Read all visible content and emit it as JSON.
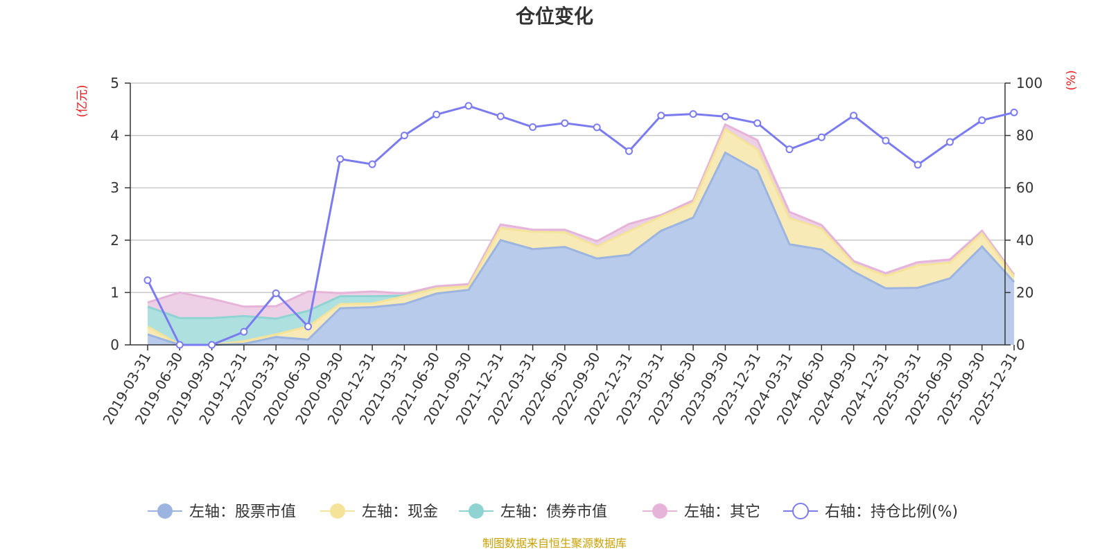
{
  "chart_data": {
    "type": "area",
    "title": "仓位变化",
    "left_axis_label": "(亿元)",
    "right_axis_label": "(%)",
    "left_ylim": [
      0,
      5
    ],
    "left_ticks": [
      "0",
      "1",
      "2",
      "3",
      "4",
      "5"
    ],
    "right_ylim": [
      0,
      100
    ],
    "right_ticks": [
      "0",
      "20",
      "40",
      "60",
      "80",
      "100"
    ],
    "categories": [
      "2019-03-31",
      "2019-06-30",
      "2019-09-30",
      "2019-12-31",
      "2020-03-31",
      "2020-06-30",
      "2020-09-30",
      "2020-12-31",
      "2021-03-31",
      "2021-06-30",
      "2021-09-30",
      "2021-12-31",
      "2022-03-31",
      "2022-06-30",
      "2022-09-30",
      "2022-12-31",
      "2023-03-31",
      "2023-06-30",
      "2023-09-30",
      "2023-12-31",
      "2024-03-31",
      "2024-06-30",
      "2024-09-30",
      "2024-12-31",
      "2025-03-31",
      "2025-06-30",
      "2025-09-30",
      "2025-12-31"
    ],
    "stacked_series": [
      {
        "name": "左轴：股票市值",
        "color": "#9bb5e0",
        "fill": "#b9cbea",
        "values": [
          0.2,
          0,
          0,
          0.02,
          0.15,
          0.1,
          0.7,
          0.72,
          0.78,
          0.98,
          1.05,
          2.0,
          1.83,
          1.87,
          1.65,
          1.72,
          2.18,
          2.43,
          3.67,
          3.33,
          1.92,
          1.82,
          1.4,
          1.08,
          1.09,
          1.27,
          1.88,
          1.2
        ]
      },
      {
        "name": "左轴：现金",
        "color": "#f5e39a",
        "fill": "#f8eab7",
        "values": [
          0.15,
          0,
          0,
          0.05,
          0.05,
          0.25,
          0.08,
          0.07,
          0.15,
          0.1,
          0.07,
          0.23,
          0.33,
          0.28,
          0.23,
          0.45,
          0.27,
          0.28,
          0.45,
          0.4,
          0.5,
          0.4,
          0.15,
          0.24,
          0.43,
          0.3,
          0.25,
          0.1
        ]
      },
      {
        "name": "左轴：债券市值",
        "color": "#8fd3d3",
        "fill": "#aee0e0",
        "values": [
          0.38,
          0.51,
          0.51,
          0.48,
          0.3,
          0.3,
          0.15,
          0.14,
          0.01,
          0,
          0,
          0,
          0,
          0,
          0,
          0,
          0,
          0,
          0,
          0,
          0,
          0,
          0,
          0,
          0,
          0,
          0,
          0
        ]
      },
      {
        "name": "左轴：其它",
        "color": "#e6b3d9",
        "fill": "#eed0e6",
        "values": [
          0.08,
          0.49,
          0.37,
          0.18,
          0.24,
          0.37,
          0.06,
          0.09,
          0.04,
          0.04,
          0.04,
          0.07,
          0.04,
          0.05,
          0.1,
          0.14,
          0.03,
          0.05,
          0.09,
          0.18,
          0.12,
          0.07,
          0.05,
          0.05,
          0.06,
          0.06,
          0.05,
          0.04
        ]
      }
    ],
    "line_series": {
      "name": "右轴：持仓比例(%)",
      "color": "#7b7bf0",
      "values": [
        24.7,
        0,
        0,
        5,
        19.7,
        7,
        71,
        69,
        80,
        88,
        91.3,
        87.3,
        83.2,
        84.7,
        83.1,
        74,
        87.6,
        88.2,
        87.2,
        84.7,
        74.7,
        79.3,
        87.6,
        78,
        68.8,
        77.5,
        85.8,
        88.8
      ]
    }
  },
  "legend": [
    {
      "label": "左轴：股票市值",
      "color": "#9bb5e0",
      "marker": "filled-circle"
    },
    {
      "label": "左轴：现金",
      "color": "#f5e39a",
      "marker": "filled-circle"
    },
    {
      "label": "左轴：债券市值",
      "color": "#8fd3d3",
      "marker": "filled-circle"
    },
    {
      "label": "左轴：其它",
      "color": "#e6b3d9",
      "marker": "filled-circle"
    },
    {
      "label": "右轴：持仓比例(%)",
      "color": "#7b7bf0",
      "marker": "hollow-circle"
    }
  ],
  "source": "制图数据来自恒生聚源数据库"
}
